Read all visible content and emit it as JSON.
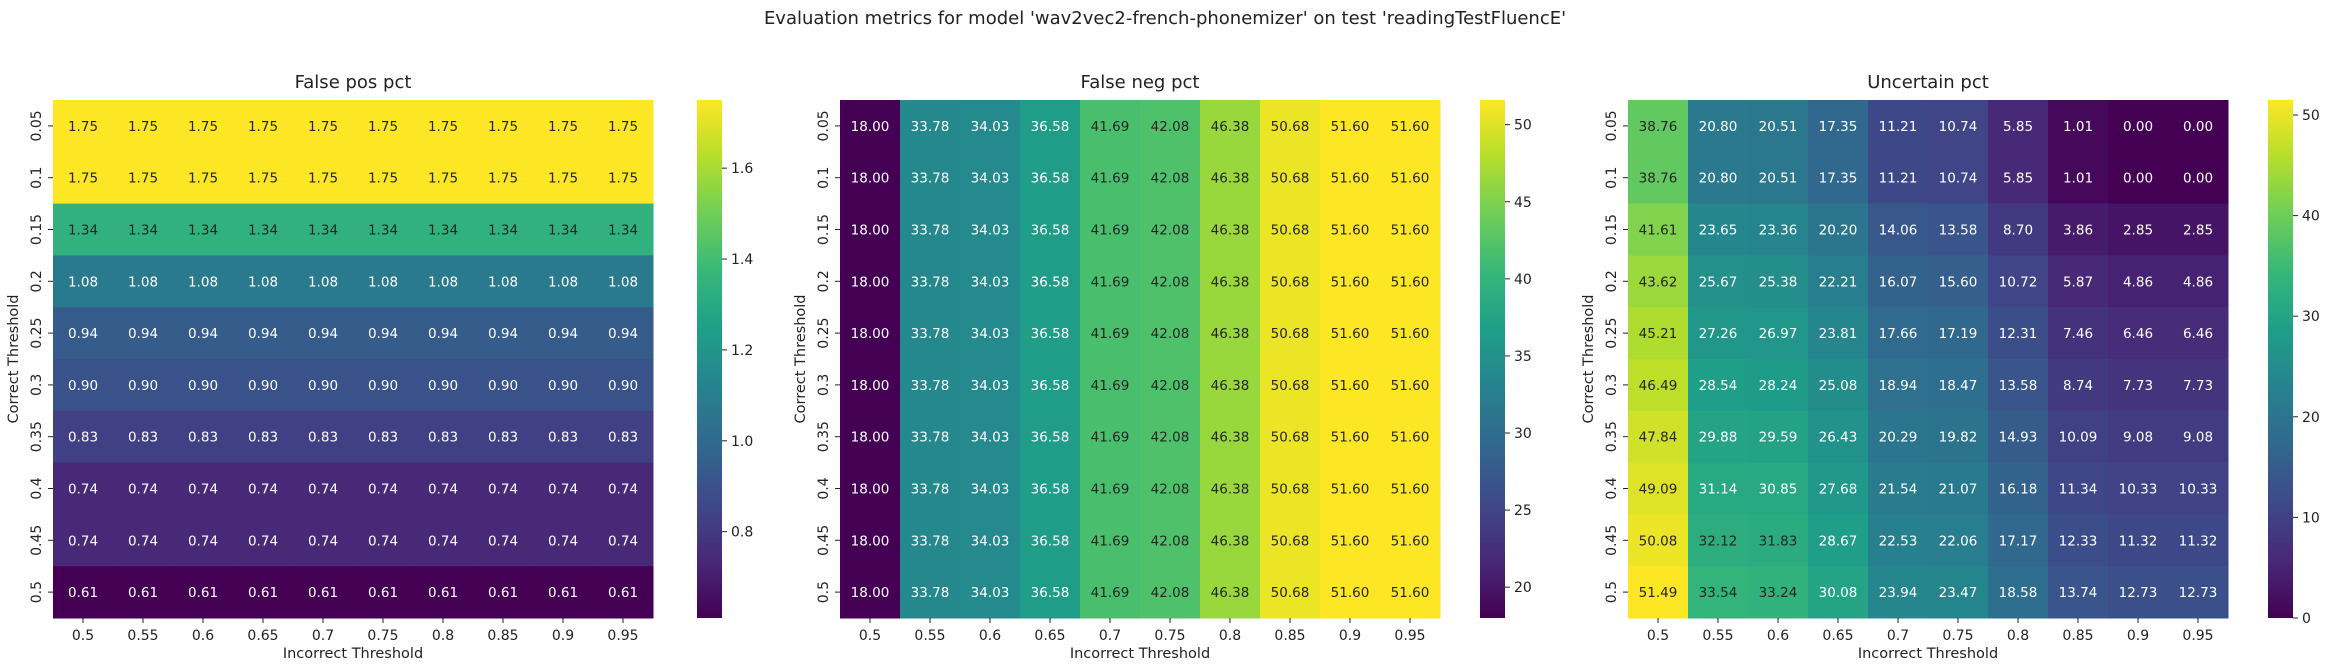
{
  "figure": {
    "suptitle": "Evaluation metrics for model 'wav2vec2-french-phonemizer' on test 'readingTestFluencE'"
  },
  "colors": {
    "viridis": [
      "#440154",
      "#482878",
      "#3e4989",
      "#31688e",
      "#26828e",
      "#1f9e89",
      "#35b779",
      "#6ece58",
      "#b5de2b",
      "#fde725"
    ]
  },
  "chart_data": [
    {
      "type": "heatmap",
      "title": "False pos pct",
      "xlabel": "Incorrect Threshold",
      "ylabel": "Correct Threshold",
      "x": [
        "0.5",
        "0.55",
        "0.6",
        "0.65",
        "0.7",
        "0.75",
        "0.8",
        "0.85",
        "0.9",
        "0.95"
      ],
      "y": [
        "0.05",
        "0.1",
        "0.15",
        "0.2",
        "0.25",
        "0.3",
        "0.35",
        "0.4",
        "0.45",
        "0.5"
      ],
      "vmin": 0.61,
      "vmax": 1.75,
      "colorbar_ticks": [
        "0.8",
        "1.0",
        "1.2",
        "1.4",
        "1.6"
      ],
      "values": [
        [
          "1.75",
          "1.75",
          "1.75",
          "1.75",
          "1.75",
          "1.75",
          "1.75",
          "1.75",
          "1.75",
          "1.75"
        ],
        [
          "1.75",
          "1.75",
          "1.75",
          "1.75",
          "1.75",
          "1.75",
          "1.75",
          "1.75",
          "1.75",
          "1.75"
        ],
        [
          "1.34",
          "1.34",
          "1.34",
          "1.34",
          "1.34",
          "1.34",
          "1.34",
          "1.34",
          "1.34",
          "1.34"
        ],
        [
          "1.08",
          "1.08",
          "1.08",
          "1.08",
          "1.08",
          "1.08",
          "1.08",
          "1.08",
          "1.08",
          "1.08"
        ],
        [
          "0.94",
          "0.94",
          "0.94",
          "0.94",
          "0.94",
          "0.94",
          "0.94",
          "0.94",
          "0.94",
          "0.94"
        ],
        [
          "0.90",
          "0.90",
          "0.90",
          "0.90",
          "0.90",
          "0.90",
          "0.90",
          "0.90",
          "0.90",
          "0.90"
        ],
        [
          "0.83",
          "0.83",
          "0.83",
          "0.83",
          "0.83",
          "0.83",
          "0.83",
          "0.83",
          "0.83",
          "0.83"
        ],
        [
          "0.74",
          "0.74",
          "0.74",
          "0.74",
          "0.74",
          "0.74",
          "0.74",
          "0.74",
          "0.74",
          "0.74"
        ],
        [
          "0.74",
          "0.74",
          "0.74",
          "0.74",
          "0.74",
          "0.74",
          "0.74",
          "0.74",
          "0.74",
          "0.74"
        ],
        [
          "0.61",
          "0.61",
          "0.61",
          "0.61",
          "0.61",
          "0.61",
          "0.61",
          "0.61",
          "0.61",
          "0.61"
        ]
      ]
    },
    {
      "type": "heatmap",
      "title": "False neg pct",
      "xlabel": "Incorrect Threshold",
      "ylabel": "Correct Threshold",
      "x": [
        "0.5",
        "0.55",
        "0.6",
        "0.65",
        "0.7",
        "0.75",
        "0.8",
        "0.85",
        "0.9",
        "0.95"
      ],
      "y": [
        "0.05",
        "0.1",
        "0.15",
        "0.2",
        "0.25",
        "0.3",
        "0.35",
        "0.4",
        "0.45",
        "0.5"
      ],
      "vmin": 18.0,
      "vmax": 51.6,
      "colorbar_ticks": [
        "20",
        "25",
        "30",
        "35",
        "40",
        "45",
        "50"
      ],
      "values": [
        [
          "18.00",
          "33.78",
          "34.03",
          "36.58",
          "41.69",
          "42.08",
          "46.38",
          "50.68",
          "51.60",
          "51.60"
        ],
        [
          "18.00",
          "33.78",
          "34.03",
          "36.58",
          "41.69",
          "42.08",
          "46.38",
          "50.68",
          "51.60",
          "51.60"
        ],
        [
          "18.00",
          "33.78",
          "34.03",
          "36.58",
          "41.69",
          "42.08",
          "46.38",
          "50.68",
          "51.60",
          "51.60"
        ],
        [
          "18.00",
          "33.78",
          "34.03",
          "36.58",
          "41.69",
          "42.08",
          "46.38",
          "50.68",
          "51.60",
          "51.60"
        ],
        [
          "18.00",
          "33.78",
          "34.03",
          "36.58",
          "41.69",
          "42.08",
          "46.38",
          "50.68",
          "51.60",
          "51.60"
        ],
        [
          "18.00",
          "33.78",
          "34.03",
          "36.58",
          "41.69",
          "42.08",
          "46.38",
          "50.68",
          "51.60",
          "51.60"
        ],
        [
          "18.00",
          "33.78",
          "34.03",
          "36.58",
          "41.69",
          "42.08",
          "46.38",
          "50.68",
          "51.60",
          "51.60"
        ],
        [
          "18.00",
          "33.78",
          "34.03",
          "36.58",
          "41.69",
          "42.08",
          "46.38",
          "50.68",
          "51.60",
          "51.60"
        ],
        [
          "18.00",
          "33.78",
          "34.03",
          "36.58",
          "41.69",
          "42.08",
          "46.38",
          "50.68",
          "51.60",
          "51.60"
        ],
        [
          "18.00",
          "33.78",
          "34.03",
          "36.58",
          "41.69",
          "42.08",
          "46.38",
          "50.68",
          "51.60",
          "51.60"
        ]
      ]
    },
    {
      "type": "heatmap",
      "title": "Uncertain pct",
      "xlabel": "Incorrect Threshold",
      "ylabel": "Correct Threshold",
      "x": [
        "0.5",
        "0.55",
        "0.6",
        "0.65",
        "0.7",
        "0.75",
        "0.8",
        "0.85",
        "0.9",
        "0.95"
      ],
      "y": [
        "0.05",
        "0.1",
        "0.15",
        "0.2",
        "0.25",
        "0.3",
        "0.35",
        "0.4",
        "0.45",
        "0.5"
      ],
      "vmin": 0.0,
      "vmax": 51.49,
      "colorbar_ticks": [
        "0",
        "10",
        "20",
        "30",
        "40",
        "50"
      ],
      "values": [
        [
          "38.76",
          "20.80",
          "20.51",
          "17.35",
          "11.21",
          "10.74",
          "5.85",
          "1.01",
          "0.00",
          "0.00"
        ],
        [
          "38.76",
          "20.80",
          "20.51",
          "17.35",
          "11.21",
          "10.74",
          "5.85",
          "1.01",
          "0.00",
          "0.00"
        ],
        [
          "41.61",
          "23.65",
          "23.36",
          "20.20",
          "14.06",
          "13.58",
          "8.70",
          "3.86",
          "2.85",
          "2.85"
        ],
        [
          "43.62",
          "25.67",
          "25.38",
          "22.21",
          "16.07",
          "15.60",
          "10.72",
          "5.87",
          "4.86",
          "4.86"
        ],
        [
          "45.21",
          "27.26",
          "26.97",
          "23.81",
          "17.66",
          "17.19",
          "12.31",
          "7.46",
          "6.46",
          "6.46"
        ],
        [
          "46.49",
          "28.54",
          "28.24",
          "25.08",
          "18.94",
          "18.47",
          "13.58",
          "8.74",
          "7.73",
          "7.73"
        ],
        [
          "47.84",
          "29.88",
          "29.59",
          "26.43",
          "20.29",
          "19.82",
          "14.93",
          "10.09",
          "9.08",
          "9.08"
        ],
        [
          "49.09",
          "31.14",
          "30.85",
          "27.68",
          "21.54",
          "21.07",
          "16.18",
          "11.34",
          "10.33",
          "10.33"
        ],
        [
          "50.08",
          "32.12",
          "31.83",
          "28.67",
          "22.53",
          "22.06",
          "17.17",
          "12.33",
          "11.32",
          "11.32"
        ],
        [
          "51.49",
          "33.54",
          "33.24",
          "30.08",
          "23.94",
          "23.47",
          "18.58",
          "13.74",
          "12.73",
          "12.73"
        ]
      ]
    }
  ]
}
